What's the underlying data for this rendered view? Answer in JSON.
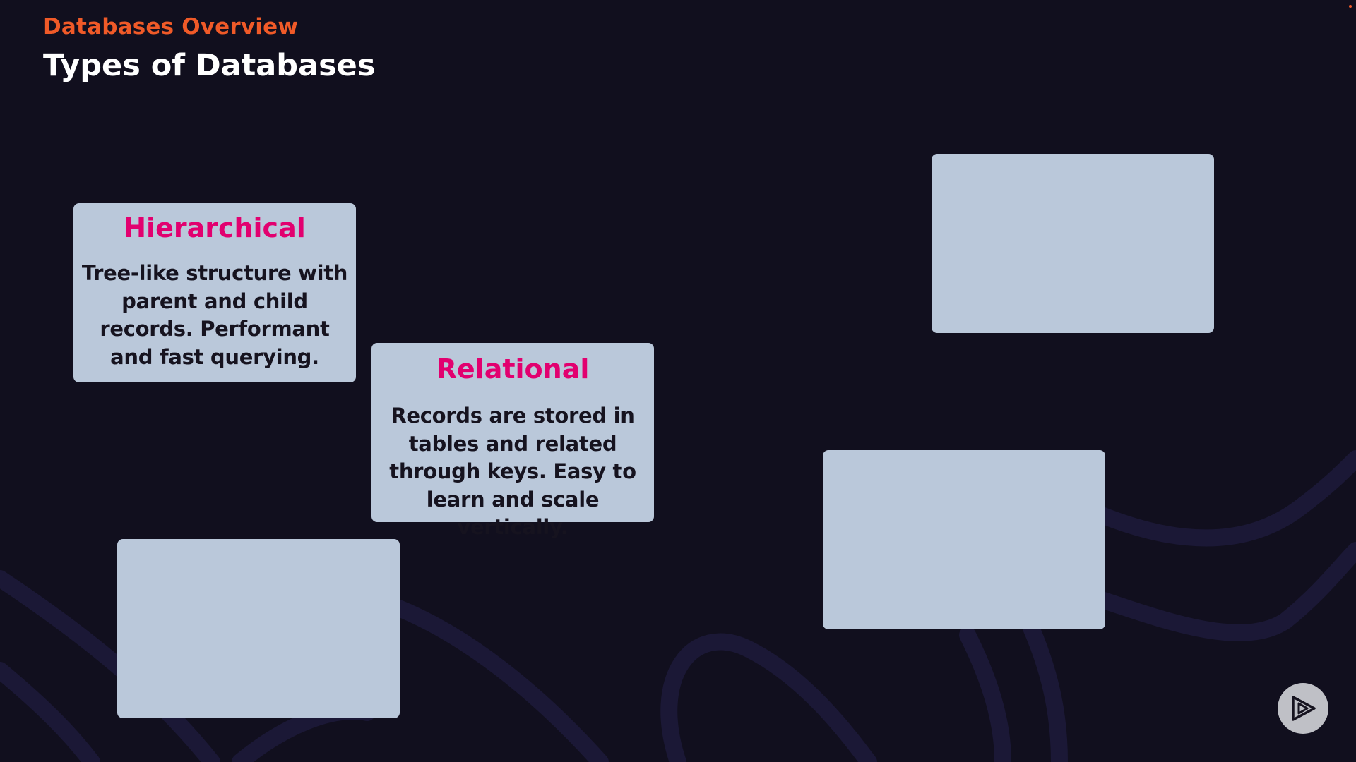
{
  "header": {
    "eyebrow": "Databases Overview",
    "title": "Types of Databases"
  },
  "cards": [
    {
      "title": "Hierarchical",
      "body": "Tree-like structure with parent and child records. Performant and fast querying."
    },
    {
      "title": "Relational",
      "body": "Records are stored in tables and related through keys. Easy to learn and scale vertically."
    }
  ],
  "icons": {
    "play_button": "play-icon"
  },
  "colors": {
    "background": "#110f1e",
    "accent_orange": "#f05a28",
    "card_title_pink": "#e2006f",
    "card_background": "#bac8da"
  }
}
